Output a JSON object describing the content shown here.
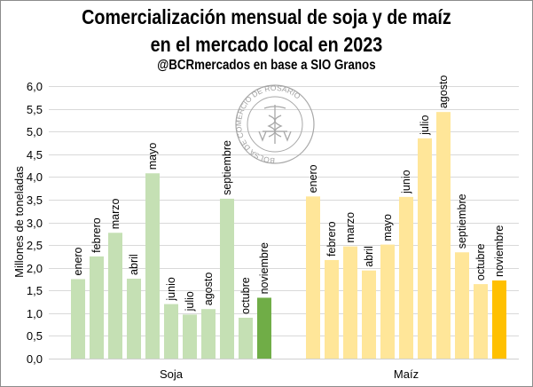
{
  "title_line1": "Comercialización mensual de soja y de maíz",
  "title_line2": "en el mercado local en 2023",
  "subtitle": "@BCRmercados en base a SIO Granos",
  "watermark": {
    "text": "BOLSA DE COMERCIO DE ROSARIO",
    "icon": "caduceus-seal-icon"
  },
  "colors": {
    "soja": "#c5e0b4",
    "soja_dark": "#70ad47",
    "maiz": "#ffe699",
    "maiz_dark": "#ffc000"
  },
  "chart_data": {
    "type": "bar",
    "ylabel": "Millones de toneladas",
    "xlabel": "",
    "ylim": [
      0,
      6
    ],
    "yticks": [
      "0,0",
      "0,5",
      "1,0",
      "1,5",
      "2,0",
      "2,5",
      "3,0",
      "3,5",
      "4,0",
      "4,5",
      "5,0",
      "5,5",
      "6,0"
    ],
    "grid": true,
    "groups": [
      {
        "name": "Soja",
        "labels": [
          "enero",
          "febrero",
          "marzo",
          "abril",
          "mayo",
          "junio",
          "julio",
          "agosto",
          "septiembre",
          "octubre",
          "noviembre"
        ],
        "values": [
          1.75,
          2.25,
          2.77,
          1.76,
          4.08,
          1.2,
          0.97,
          1.09,
          3.52,
          0.9,
          1.34
        ],
        "highlight_last": true
      },
      {
        "name": "Maíz",
        "labels": [
          "enero",
          "febrero",
          "marzo",
          "abril",
          "mayo",
          "junio",
          "julio",
          "agosto",
          "septiembre",
          "octubre",
          "noviembre"
        ],
        "values": [
          3.57,
          2.17,
          2.47,
          1.94,
          2.51,
          3.56,
          4.85,
          5.43,
          2.34,
          1.64,
          1.72
        ],
        "highlight_last": true
      }
    ]
  }
}
